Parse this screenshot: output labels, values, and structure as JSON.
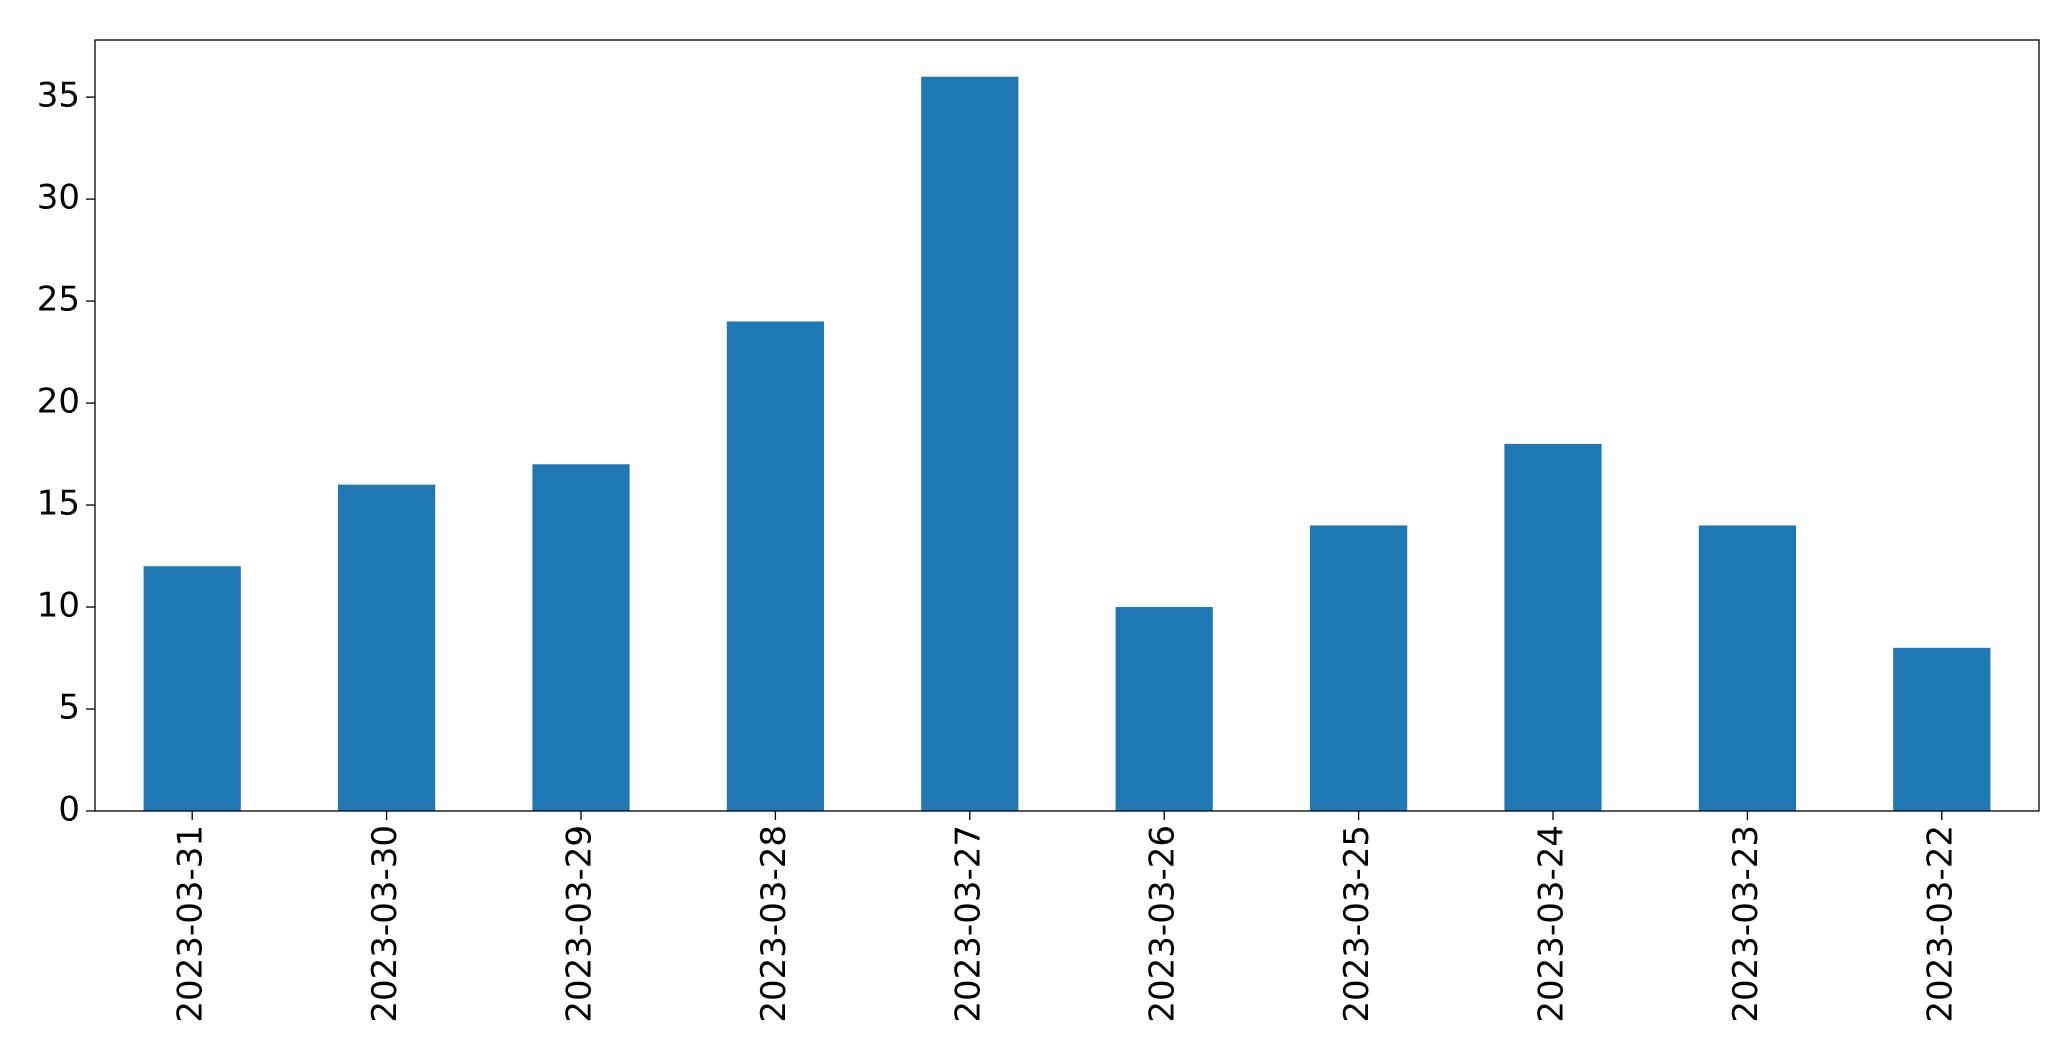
{
  "chart_data": {
    "type": "bar",
    "categories": [
      "2023-03-31",
      "2023-03-30",
      "2023-03-29",
      "2023-03-28",
      "2023-03-27",
      "2023-03-26",
      "2023-03-25",
      "2023-03-24",
      "2023-03-23",
      "2023-03-22"
    ],
    "values": [
      12,
      16,
      17,
      24,
      36,
      10,
      14,
      18,
      14,
      8
    ],
    "color": "#1f77b4",
    "ylim": [
      0,
      37.8
    ],
    "yticks": [
      0,
      5,
      10,
      15,
      20,
      25,
      30,
      35
    ],
    "grid": false
  }
}
